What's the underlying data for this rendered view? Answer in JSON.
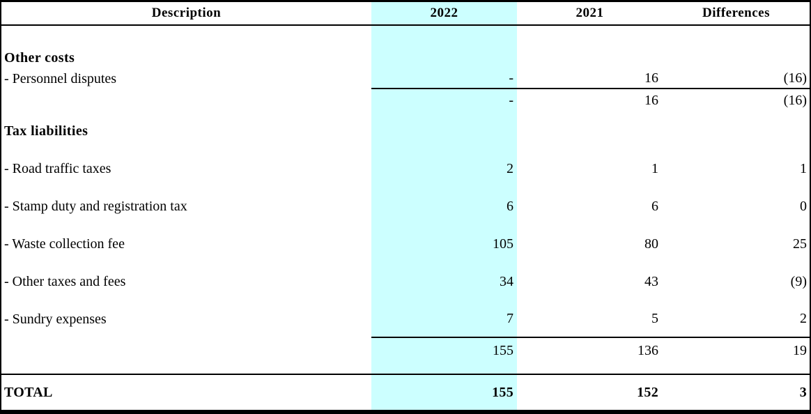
{
  "colors": {
    "highlight": "#CCFFFF",
    "border": "#000000",
    "text": "#000000",
    "background": "#FFFFFF"
  },
  "table": {
    "columns": [
      {
        "label": "Description",
        "highlighted": false
      },
      {
        "label": "2022",
        "highlighted": true
      },
      {
        "label": "2021",
        "highlighted": false
      },
      {
        "label": "Differences",
        "highlighted": false
      }
    ],
    "rows": [
      {
        "type": "blank",
        "description": "",
        "y2022": "",
        "y2021": "",
        "diff": ""
      },
      {
        "type": "section",
        "description": "Other costs",
        "y2022": "",
        "y2021": "",
        "diff": ""
      },
      {
        "type": "item-s rule",
        "description": "- Personnel disputes",
        "y2022": "-",
        "y2021": "16",
        "diff": "(16)"
      },
      {
        "type": "subtotal",
        "description": "",
        "y2022": "-",
        "y2021": "16",
        "diff": "(16)"
      },
      {
        "type": "section-tall",
        "description": "Tax liabilities",
        "y2022": "",
        "y2021": "",
        "diff": ""
      },
      {
        "type": "item",
        "description": "- Road traffic taxes",
        "y2022": "2",
        "y2021": "1",
        "diff": "1"
      },
      {
        "type": "item",
        "description": "- Stamp duty and registration tax",
        "y2022": "6",
        "y2021": "6",
        "diff": "0"
      },
      {
        "type": "item",
        "description": "- Waste collection fee",
        "y2022": "105",
        "y2021": "80",
        "diff": "25"
      },
      {
        "type": "item",
        "description": "- Other taxes and fees",
        "y2022": "34",
        "y2021": "43",
        "diff": "(9)"
      },
      {
        "type": "item rule",
        "description": "- Sundry expenses",
        "y2022": "7",
        "y2021": "5",
        "diff": "2"
      },
      {
        "type": "subtotal-tall",
        "description": "",
        "y2022": "155",
        "y2021": "136",
        "diff": "19"
      },
      {
        "type": "spacer rule-full",
        "description": "",
        "y2022": "",
        "y2021": "",
        "diff": ""
      },
      {
        "type": "total",
        "description": "TOTAL",
        "y2022": "155",
        "y2021": "152",
        "diff": "3"
      }
    ]
  }
}
